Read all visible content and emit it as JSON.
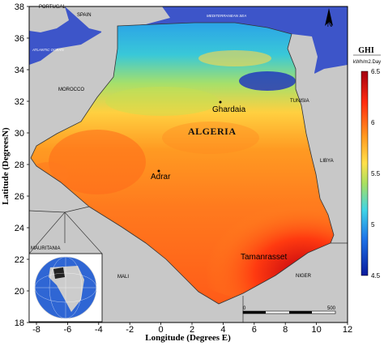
{
  "title": "",
  "axes": {
    "xlabel": "Longitude (Degrees E)",
    "ylabel": "Latitude (DegreesN)",
    "xticks": [
      "-8",
      "-6",
      "-4",
      "-2",
      "0",
      "2",
      "4",
      "6",
      "8",
      "10",
      "12"
    ],
    "yticks": [
      "38",
      "36",
      "34",
      "32",
      "30",
      "28",
      "26",
      "24",
      "22",
      "20",
      "18"
    ]
  },
  "colorbar": {
    "title": "GHI",
    "unit": "kWh/m2.Day",
    "ticks": [
      "6.5",
      "6",
      "5.5",
      "5",
      "4.5"
    ],
    "colors": [
      "#c40010",
      "#ff4a1a",
      "#ff9a20",
      "#ffd84a",
      "#9de06b",
      "#3fd4e6",
      "#1e73e8",
      "#0a1fa8"
    ]
  },
  "labels": {
    "countries": [
      "PORTUGAL",
      "SPAIN",
      "MOROCCO",
      "TUNISIA",
      "LIBYA",
      "MAURITANIA",
      "MALI",
      "NIGER"
    ],
    "main_country": "ALGERIA",
    "seas": [
      "MEDITERRANEAN SEA",
      "ATLANTIC OCEAN"
    ],
    "cities": [
      "Ghardaia",
      "Adrar",
      "Tamanrasset"
    ]
  },
  "north_arrow": "N",
  "scale_bar": {
    "start": "0",
    "end": "500"
  },
  "colors": {
    "sea": "#3d55c9",
    "land": "#c8c8c8",
    "frame": "#000000"
  }
}
